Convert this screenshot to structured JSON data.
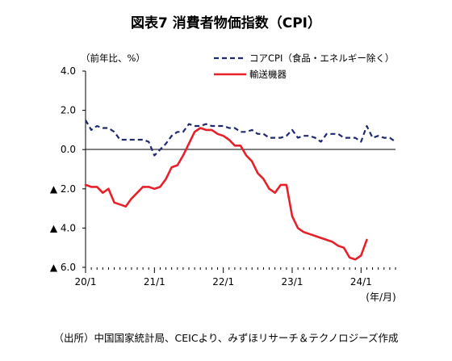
{
  "chart_data": {
    "type": "line",
    "title": "図表7 消費者物価指数（CPI）",
    "unit_label": "（前年比、%）",
    "source": "（出所）中国国家統計局、CEICより、みずほリサーチ＆テクノロジーズ作成",
    "x_unit_label": "(年/月)",
    "x_tick_labels": [
      "20/1",
      "21/1",
      "22/1",
      "23/1",
      "24/1"
    ],
    "y_tick_labels": [
      "4.0",
      "2.0",
      "0.0",
      "▲ 2.0",
      "▲ 4.0",
      "▲ 6.0"
    ],
    "y_ticks": [
      4,
      2,
      0,
      -2,
      -4,
      -6
    ],
    "ylim": [
      -6,
      4
    ],
    "x_start": "2020/1",
    "x_end": "2024/7",
    "x_tick_dates": [
      "2020/1",
      "2021/1",
      "2022/1",
      "2023/1",
      "2024/1"
    ],
    "grid": false,
    "legend_position": "top-right",
    "series": [
      {
        "name": "コアCPI（食品・エネルギー除く）",
        "style": "dashed",
        "color": "#1f2a6e",
        "x": [
          "2020/1",
          "2020/2",
          "2020/3",
          "2020/4",
          "2020/5",
          "2020/6",
          "2020/7",
          "2020/8",
          "2020/9",
          "2020/10",
          "2020/11",
          "2020/12",
          "2021/1",
          "2021/2",
          "2021/3",
          "2021/4",
          "2021/5",
          "2021/6",
          "2021/7",
          "2021/8",
          "2021/9",
          "2021/10",
          "2021/11",
          "2021/12",
          "2022/1",
          "2022/2",
          "2022/3",
          "2022/4",
          "2022/5",
          "2022/6",
          "2022/7",
          "2022/8",
          "2022/9",
          "2022/10",
          "2022/11",
          "2022/12",
          "2023/1",
          "2023/2",
          "2023/3",
          "2023/4",
          "2023/5",
          "2023/6",
          "2023/7",
          "2023/8",
          "2023/9",
          "2023/10",
          "2023/11",
          "2023/12",
          "2024/1",
          "2024/2",
          "2024/3",
          "2024/4",
          "2024/5",
          "2024/6",
          "2024/7"
        ],
        "values": [
          1.5,
          1.0,
          1.2,
          1.1,
          1.1,
          0.9,
          0.5,
          0.5,
          0.5,
          0.5,
          0.5,
          0.4,
          -0.3,
          0.0,
          0.3,
          0.7,
          0.9,
          0.9,
          1.3,
          1.2,
          1.2,
          1.3,
          1.2,
          1.2,
          1.2,
          1.1,
          1.1,
          0.9,
          0.9,
          1.0,
          0.8,
          0.8,
          0.6,
          0.6,
          0.6,
          0.7,
          1.0,
          0.6,
          0.7,
          0.7,
          0.6,
          0.4,
          0.8,
          0.8,
          0.8,
          0.6,
          0.6,
          0.6,
          0.4,
          1.2,
          0.6,
          0.7,
          0.6,
          0.6,
          0.4
        ]
      },
      {
        "name": "輸送機器",
        "style": "solid",
        "color": "#e8202a",
        "x": [
          "2020/1",
          "2020/2",
          "2020/3",
          "2020/4",
          "2020/5",
          "2020/6",
          "2020/7",
          "2020/8",
          "2020/9",
          "2020/10",
          "2020/11",
          "2020/12",
          "2021/1",
          "2021/2",
          "2021/3",
          "2021/4",
          "2021/5",
          "2021/6",
          "2021/7",
          "2021/8",
          "2021/9",
          "2021/10",
          "2021/11",
          "2021/12",
          "2022/1",
          "2022/2",
          "2022/3",
          "2022/4",
          "2022/5",
          "2022/6",
          "2022/7",
          "2022/8",
          "2022/9",
          "2022/10",
          "2022/11",
          "2022/12",
          "2023/1",
          "2023/2",
          "2023/3",
          "2023/4",
          "2023/5",
          "2023/6",
          "2023/7",
          "2023/8",
          "2023/9",
          "2023/10",
          "2023/11",
          "2023/12",
          "2024/1",
          "2024/2",
          "2024/3",
          "2024/4",
          "2024/5",
          "2024/6",
          "2024/7"
        ],
        "values": [
          -1.8,
          -1.9,
          -1.9,
          -2.2,
          -2.0,
          -2.7,
          -2.8,
          -2.9,
          -2.5,
          -2.2,
          -1.9,
          -1.9,
          -2.0,
          -1.9,
          -1.5,
          -0.9,
          -0.8,
          -0.3,
          0.3,
          0.9,
          1.1,
          1.0,
          1.0,
          0.8,
          0.7,
          0.5,
          0.2,
          0.2,
          -0.3,
          -0.6,
          -1.2,
          -1.5,
          -2.0,
          -2.2,
          -1.8,
          -1.8,
          -3.4,
          -4.0,
          -4.2,
          -4.3,
          -4.4,
          -4.5,
          -4.6,
          -4.7,
          -4.9,
          -5.0,
          -5.5,
          -5.6,
          -5.4,
          -4.6,
          null,
          null,
          null,
          null,
          null
        ]
      }
    ]
  }
}
